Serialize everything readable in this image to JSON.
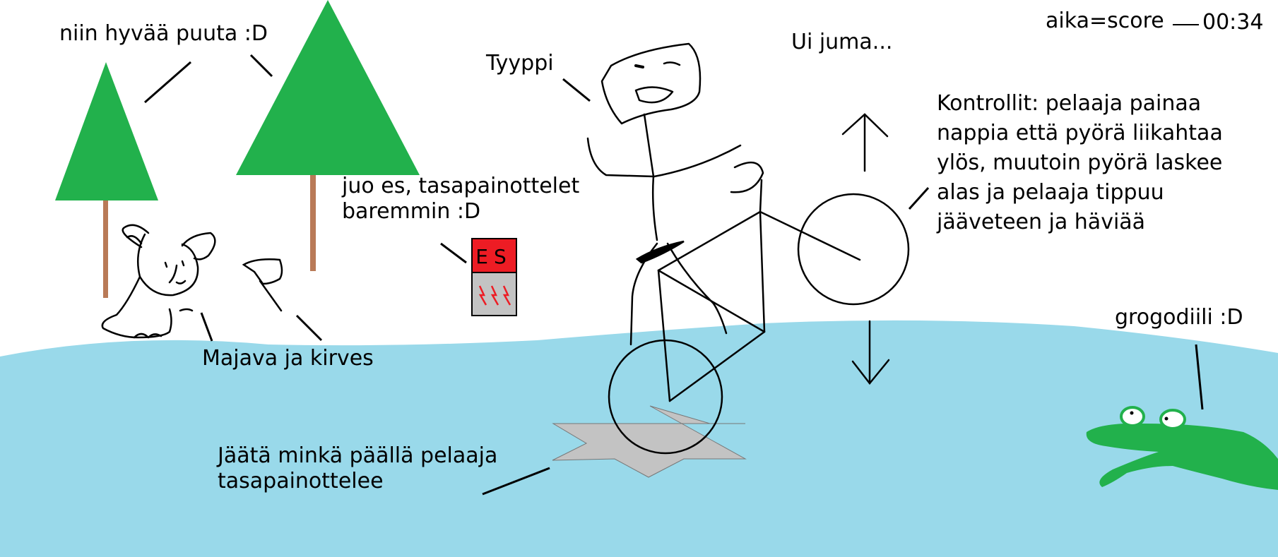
{
  "hud": {
    "score_label": "aika=score",
    "timer": "00:34"
  },
  "labels": {
    "trees": "niin hyvää puuta :D",
    "player": "Tyyppi",
    "exclaim": "Ui juma...",
    "energy_drink": [
      "juo es, tasapainottelet",
      "baremmin :D"
    ],
    "beaver_axe": "Majava ja kirves",
    "ice": [
      "Jäätä minkä päällä pelaaja",
      "tasapainottelee"
    ],
    "controls": [
      "Kontrollit: pelaaja painaa",
      "nappia että pyörä liikahtaa",
      "ylös, muutoin pyörä laskee",
      "alas ja pelaaja tippuu",
      "jääveteen ja häviää"
    ],
    "crocodile": "grogodiili :D"
  },
  "can": {
    "text": "ES"
  },
  "colors": {
    "water": "#99d9ea",
    "tree_green": "#22b14c",
    "trunk": "#b97a57",
    "ice": "#c3c3c3",
    "can_red": "#ed1c24",
    "croc_green": "#22b14c",
    "ink": "#000000"
  }
}
